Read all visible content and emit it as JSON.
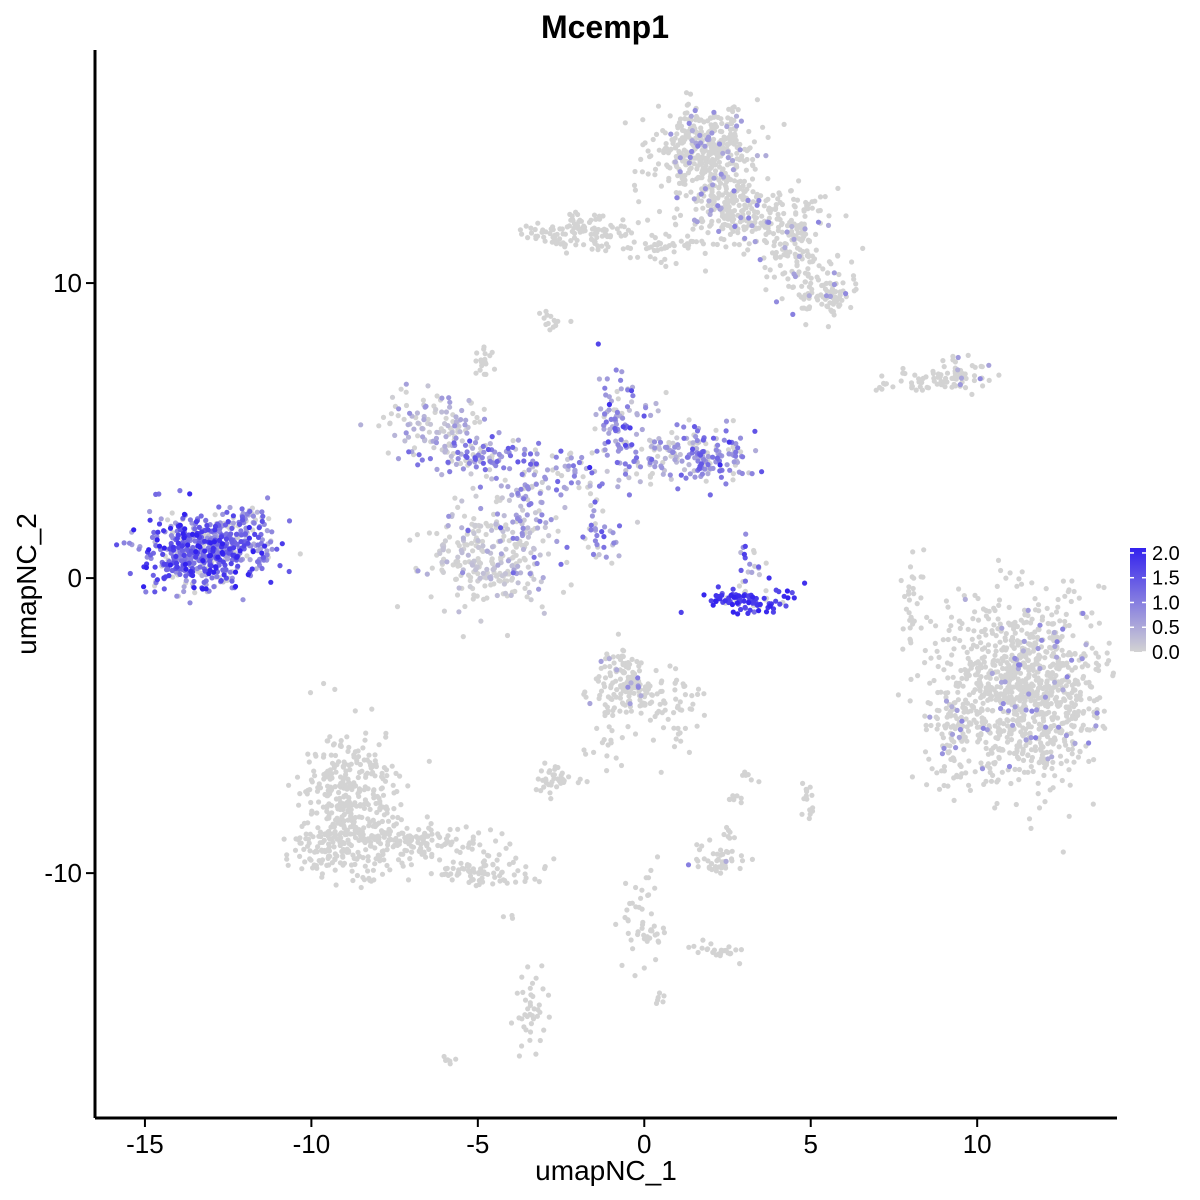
{
  "chart_data": {
    "type": "scatter",
    "title": "Mcemp1",
    "xlabel": "umapNC_1",
    "ylabel": "umapNC_2",
    "xlim": [
      -16.5,
      14.2
    ],
    "ylim": [
      -18.3,
      17.9
    ],
    "x_ticks": [
      -15,
      -10,
      -5,
      0,
      5,
      10
    ],
    "x_tick_labels": [
      "-15",
      "-10",
      "-5",
      "0",
      "5",
      "10"
    ],
    "y_ticks": [
      -10,
      0,
      10
    ],
    "y_tick_labels": [
      "-10",
      "0",
      "10"
    ],
    "grid": false,
    "legend": {
      "placement": "right",
      "type": "colorbar",
      "ticks": [
        0.0,
        0.5,
        1.0,
        1.5,
        2.0
      ],
      "tick_labels": [
        "0.0",
        "0.5",
        "1.0",
        "1.5",
        "2.0"
      ],
      "range": [
        0,
        2.1
      ],
      "low_color": "#d3d3d3",
      "high_color": "#3322ee"
    },
    "clusters": [
      {
        "cx": -13.3,
        "cy": 0.9,
        "sx": 0.85,
        "sy": 0.65,
        "n": 520,
        "expr": 1.25,
        "spread": 0.55
      },
      {
        "cx": -12.0,
        "cy": 1.5,
        "sx": 0.6,
        "sy": 0.55,
        "n": 110,
        "expr": 1.0,
        "spread": 0.5
      },
      {
        "cx": 3.2,
        "cy": -0.7,
        "sx": 0.65,
        "sy": 0.22,
        "n": 95,
        "expr": 1.8,
        "spread": 0.25
      },
      {
        "cx": 3.2,
        "cy": 0.6,
        "sx": 0.2,
        "sy": 0.45,
        "n": 20,
        "expr": 1.0,
        "spread": 0.5
      },
      {
        "cx": -4.6,
        "cy": 0.6,
        "sx": 0.95,
        "sy": 0.85,
        "n": 260,
        "expr": 0.08,
        "spread": 0.3
      },
      {
        "cx": -6.3,
        "cy": 5.2,
        "sx": 0.75,
        "sy": 0.5,
        "n": 120,
        "expr": 0.2,
        "spread": 0.35
      },
      {
        "cx": -5.0,
        "cy": 4.1,
        "sx": 0.9,
        "sy": 0.35,
        "n": 90,
        "expr": 0.9,
        "spread": 0.45
      },
      {
        "cx": -2.5,
        "cy": 3.4,
        "sx": 0.9,
        "sy": 0.6,
        "n": 80,
        "expr": 0.55,
        "spread": 0.45
      },
      {
        "cx": -0.8,
        "cy": 5.4,
        "sx": 0.5,
        "sy": 0.7,
        "n": 90,
        "expr": 0.7,
        "spread": 0.45
      },
      {
        "cx": 0.6,
        "cy": 4.1,
        "sx": 1.0,
        "sy": 0.4,
        "n": 100,
        "expr": 0.55,
        "spread": 0.45
      },
      {
        "cx": 2.1,
        "cy": 4.2,
        "sx": 0.7,
        "sy": 0.5,
        "n": 110,
        "expr": 0.9,
        "spread": 0.45
      },
      {
        "cx": -3.6,
        "cy": 1.9,
        "sx": 0.4,
        "sy": 0.8,
        "n": 60,
        "expr": 0.6,
        "spread": 0.45
      },
      {
        "cx": -1.4,
        "cy": 1.2,
        "sx": 0.5,
        "sy": 0.35,
        "n": 30,
        "expr": 0.8,
        "spread": 0.45
      },
      {
        "cx": -4.8,
        "cy": 7.3,
        "sx": 0.15,
        "sy": 0.25,
        "n": 18,
        "expr": 0.0,
        "spread": 0.05
      },
      {
        "cx": -2.8,
        "cy": 8.7,
        "sx": 0.2,
        "sy": 0.15,
        "n": 14,
        "expr": 0.0,
        "spread": 0.05
      },
      {
        "cx": 1.8,
        "cy": 14.5,
        "sx": 0.8,
        "sy": 0.75,
        "n": 420,
        "expr": 0.03,
        "spread": 0.2
      },
      {
        "cx": 2.6,
        "cy": 12.6,
        "sx": 0.6,
        "sy": 0.6,
        "n": 140,
        "expr": 0.03,
        "spread": 0.2
      },
      {
        "cx": 3.8,
        "cy": 12.2,
        "sx": 0.8,
        "sy": 0.45,
        "n": 140,
        "expr": 0.03,
        "spread": 0.2
      },
      {
        "cx": 4.6,
        "cy": 11.0,
        "sx": 0.6,
        "sy": 0.5,
        "n": 100,
        "expr": 0.03,
        "spread": 0.2
      },
      {
        "cx": 5.4,
        "cy": 9.6,
        "sx": 0.55,
        "sy": 0.35,
        "n": 90,
        "expr": 0.03,
        "spread": 0.2
      },
      {
        "cx": -1.9,
        "cy": 11.7,
        "sx": 0.9,
        "sy": 0.3,
        "n": 110,
        "expr": 0.0,
        "spread": 0.1
      },
      {
        "cx": 0.4,
        "cy": 11.3,
        "sx": 0.9,
        "sy": 0.3,
        "n": 60,
        "expr": 0.0,
        "spread": 0.1
      },
      {
        "cx": 8.5,
        "cy": 6.7,
        "sx": 0.9,
        "sy": 0.2,
        "n": 50,
        "expr": 0.0,
        "spread": 0.1
      },
      {
        "cx": 9.4,
        "cy": 7.0,
        "sx": 0.4,
        "sy": 0.25,
        "n": 40,
        "expr": 0.02,
        "spread": 0.2
      },
      {
        "cx": 11.4,
        "cy": -3.8,
        "sx": 1.2,
        "sy": 1.6,
        "n": 1050,
        "expr": 0.02,
        "spread": 0.2
      },
      {
        "cx": 9.3,
        "cy": -5.2,
        "sx": 0.5,
        "sy": 0.9,
        "n": 90,
        "expr": 0.03,
        "spread": 0.2
      },
      {
        "cx": 8.1,
        "cy": -0.5,
        "sx": 0.2,
        "sy": 0.8,
        "n": 30,
        "expr": 0.0,
        "spread": 0.1
      },
      {
        "cx": -8.7,
        "cy": -7.6,
        "sx": 0.8,
        "sy": 1.2,
        "n": 380,
        "expr": 0.0,
        "spread": 0.05
      },
      {
        "cx": -9.6,
        "cy": -9.1,
        "sx": 0.5,
        "sy": 0.4,
        "n": 80,
        "expr": 0.0,
        "spread": 0.05
      },
      {
        "cx": -6.8,
        "cy": -9.0,
        "sx": 1.1,
        "sy": 0.35,
        "n": 140,
        "expr": 0.0,
        "spread": 0.05
      },
      {
        "cx": -4.7,
        "cy": -10.0,
        "sx": 0.7,
        "sy": 0.25,
        "n": 80,
        "expr": 0.0,
        "spread": 0.05
      },
      {
        "cx": -0.6,
        "cy": -3.6,
        "sx": 0.45,
        "sy": 0.6,
        "n": 150,
        "expr": 0.02,
        "spread": 0.15
      },
      {
        "cx": 0.9,
        "cy": -4.3,
        "sx": 0.4,
        "sy": 0.7,
        "n": 60,
        "expr": 0.0,
        "spread": 0.05
      },
      {
        "cx": -2.6,
        "cy": -6.9,
        "sx": 0.35,
        "sy": 0.25,
        "n": 40,
        "expr": 0.0,
        "spread": 0.05
      },
      {
        "cx": -1.2,
        "cy": -5.8,
        "sx": 0.3,
        "sy": 0.5,
        "n": 14,
        "expr": 0.0,
        "spread": 0.05
      },
      {
        "cx": 2.2,
        "cy": -9.6,
        "sx": 0.4,
        "sy": 0.25,
        "n": 40,
        "expr": 0.03,
        "spread": 0.2
      },
      {
        "cx": 2.5,
        "cy": -8.7,
        "sx": 0.12,
        "sy": 0.2,
        "n": 8,
        "expr": 0.0,
        "spread": 0.05
      },
      {
        "cx": 2.2,
        "cy": -12.6,
        "sx": 0.35,
        "sy": 0.15,
        "n": 25,
        "expr": 0.0,
        "spread": 0.05
      },
      {
        "cx": -0.2,
        "cy": -11.3,
        "sx": 0.3,
        "sy": 1.0,
        "n": 40,
        "expr": 0.0,
        "spread": 0.05
      },
      {
        "cx": -3.4,
        "cy": -14.6,
        "sx": 0.25,
        "sy": 0.6,
        "n": 40,
        "expr": 0.0,
        "spread": 0.05
      },
      {
        "cx": 2.8,
        "cy": -7.4,
        "sx": 0.15,
        "sy": 0.1,
        "n": 8,
        "expr": 0.0,
        "spread": 0.05
      },
      {
        "cx": 4.9,
        "cy": -7.3,
        "sx": 0.12,
        "sy": 0.25,
        "n": 10,
        "expr": 0.0,
        "spread": 0.05
      },
      {
        "cx": 3.2,
        "cy": -6.7,
        "sx": 0.2,
        "sy": 0.15,
        "n": 6,
        "expr": 0.0,
        "spread": 0.05
      },
      {
        "cx": 5.0,
        "cy": -8.0,
        "sx": 0.15,
        "sy": 0.2,
        "n": 6,
        "expr": 0.0,
        "spread": 0.05
      },
      {
        "cx": 0.6,
        "cy": -12.0,
        "sx": 0.3,
        "sy": 0.2,
        "n": 10,
        "expr": 0.0,
        "spread": 0.05
      },
      {
        "cx": 0.5,
        "cy": -14.3,
        "sx": 0.15,
        "sy": 0.12,
        "n": 6,
        "expr": 0.0,
        "spread": 0.05
      },
      {
        "cx": -5.9,
        "cy": -16.3,
        "sx": 0.15,
        "sy": 0.1,
        "n": 6,
        "expr": 0.0,
        "spread": 0.05
      },
      {
        "cx": -4.0,
        "cy": -11.5,
        "sx": 0.1,
        "sy": 0.1,
        "n": 3,
        "expr": 0.0,
        "spread": 0.05
      }
    ]
  }
}
